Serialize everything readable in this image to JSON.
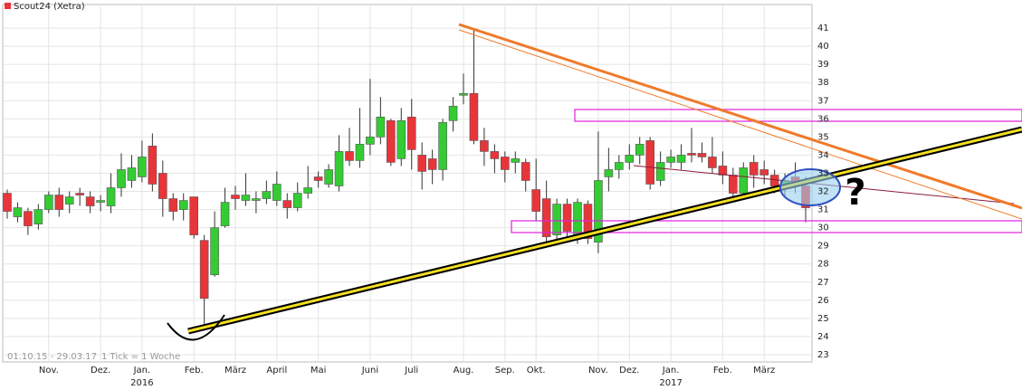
{
  "chart_data": {
    "type": "candlestick",
    "legend_name": "Scout24 (Xetra)",
    "date_range": "01.10.15 - 29.03.17",
    "tick_note": "1 Tick = 1 Woche",
    "annotation": "?",
    "up_color": "#33cc33",
    "down_color": "#e8353a",
    "grid": true,
    "ylim": [
      22.6,
      42.3
    ],
    "yticks": [
      23,
      24,
      25,
      26,
      27,
      28,
      29,
      30,
      31,
      32,
      33,
      34,
      35,
      36,
      37,
      38,
      39,
      40,
      41
    ],
    "categories": [
      null,
      null,
      null,
      null,
      "Nov.",
      null,
      null,
      null,
      null,
      "Dez.",
      null,
      null,
      null,
      "Jan.",
      null,
      null,
      null,
      null,
      "Feb.",
      null,
      null,
      null,
      "März",
      null,
      null,
      null,
      "April",
      null,
      null,
      null,
      "Mai",
      null,
      null,
      null,
      null,
      "Juni",
      null,
      null,
      null,
      "Juli",
      null,
      null,
      null,
      null,
      "Aug.",
      null,
      null,
      null,
      "Sep.",
      null,
      null,
      "Okt.",
      null,
      null,
      null,
      null,
      null,
      "Nov.",
      null,
      null,
      "Dez.",
      null,
      null,
      null,
      "Jan.",
      null,
      null,
      null,
      null,
      "Feb.",
      null,
      null,
      null,
      "März",
      null,
      null,
      null,
      null
    ],
    "year_labels": [
      "2016",
      "2017"
    ],
    "open": [
      31.9,
      30.6,
      30.9,
      30.2,
      31.0,
      31.8,
      31.3,
      31.9,
      31.7,
      31.4,
      31.2,
      32.2,
      32.6,
      32.8,
      34.5,
      33.0,
      31.6,
      31.0,
      31.7,
      29.3,
      27.4,
      30.1,
      31.8,
      31.5,
      31.5,
      31.6,
      31.5,
      31.5,
      31.1,
      31.9,
      32.8,
      32.4,
      32.3,
      34.2,
      33.7,
      34.6,
      35.0,
      35.9,
      33.8,
      36.1,
      34.0,
      33.8,
      33.2,
      35.9,
      37.3,
      37.4,
      34.8,
      34.2,
      33.9,
      33.6,
      33.6,
      32.1,
      31.6,
      29.6,
      31.3,
      29.6,
      31.3,
      29.2,
      32.8,
      33.2,
      33.6,
      34.0,
      34.8,
      32.6,
      33.6,
      33.6,
      34.1,
      34.1,
      33.9,
      33.4,
      32.9,
      31.9,
      33.6,
      33.2,
      32.9,
      32.3,
      32.8,
      32.3
    ],
    "high": [
      32.1,
      31.4,
      31.1,
      31.3,
      32.0,
      32.2,
      32.0,
      32.2,
      32.0,
      31.8,
      33.0,
      34.1,
      34.0,
      34.8,
      35.2,
      33.7,
      31.9,
      31.9,
      31.7,
      29.6,
      30.9,
      32.2,
      32.3,
      33.0,
      32.0,
      32.6,
      33.1,
      31.9,
      32.5,
      33.4,
      33.1,
      33.5,
      35.1,
      35.5,
      36.6,
      38.2,
      37.2,
      36.0,
      36.6,
      37.1,
      34.7,
      34.3,
      36.0,
      37.2,
      38.5,
      41.0,
      35.5,
      34.6,
      34.2,
      34.2,
      33.8,
      33.8,
      32.6,
      31.6,
      31.6,
      31.6,
      31.5,
      35.3,
      34.4,
      34.0,
      34.6,
      35.0,
      35.0,
      34.2,
      34.3,
      34.6,
      35.5,
      34.7,
      35.0,
      34.2,
      33.3,
      33.6,
      34.0,
      33.7,
      33.2,
      33.0,
      33.6,
      32.8
    ],
    "low": [
      30.5,
      30.3,
      29.6,
      29.9,
      30.8,
      30.6,
      30.8,
      31.2,
      30.8,
      30.9,
      30.8,
      31.7,
      32.2,
      32.5,
      32.0,
      30.6,
      30.4,
      30.4,
      29.4,
      24.6,
      27.3,
      30.0,
      31.0,
      31.2,
      30.8,
      31.3,
      31.2,
      30.5,
      30.9,
      31.6,
      32.2,
      32.2,
      32.0,
      33.4,
      33.3,
      34.0,
      34.6,
      33.4,
      33.4,
      33.2,
      32.1,
      32.4,
      32.6,
      35.3,
      36.8,
      34.6,
      33.4,
      33.0,
      32.5,
      33.0,
      32.0,
      30.4,
      29.0,
      29.2,
      29.2,
      29.1,
      29.1,
      28.6,
      32.0,
      32.7,
      33.2,
      33.5,
      32.1,
      32.3,
      33.3,
      33.2,
      33.6,
      33.6,
      33.0,
      32.4,
      31.7,
      31.6,
      32.2,
      32.4,
      31.9,
      31.7,
      31.9,
      30.3
    ],
    "close": [
      30.9,
      31.1,
      30.1,
      31.0,
      31.8,
      31.0,
      31.7,
      31.8,
      31.2,
      31.5,
      32.2,
      33.2,
      33.3,
      33.9,
      32.4,
      31.6,
      30.9,
      31.5,
      29.6,
      26.1,
      30.0,
      31.4,
      31.6,
      31.8,
      31.6,
      32.0,
      32.4,
      31.1,
      31.9,
      32.2,
      32.6,
      33.2,
      34.2,
      33.7,
      34.6,
      35.0,
      36.1,
      33.6,
      35.9,
      34.3,
      33.1,
      33.2,
      35.8,
      36.7,
      37.4,
      34.8,
      34.2,
      33.8,
      33.2,
      33.8,
      32.6,
      30.9,
      29.5,
      31.3,
      29.8,
      31.4,
      29.4,
      32.6,
      33.2,
      33.6,
      34.0,
      34.6,
      32.4,
      33.6,
      33.9,
      34.0,
      34.0,
      33.9,
      33.3,
      32.9,
      31.9,
      33.3,
      32.9,
      32.9,
      32.3,
      32.6,
      32.3,
      31.1
    ]
  }
}
